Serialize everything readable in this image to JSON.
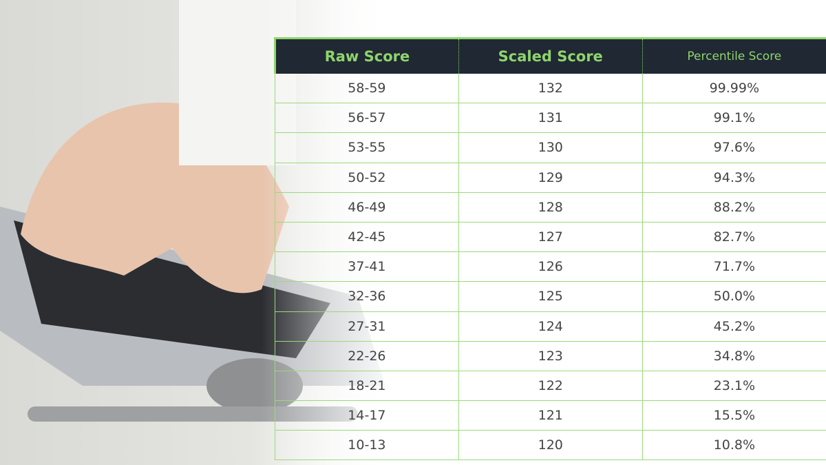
{
  "table": {
    "headers": [
      "Raw Score",
      "Scaled Score",
      "Percentile Score"
    ],
    "rows": [
      [
        "58-59",
        "132",
        "99.99%"
      ],
      [
        "56-57",
        "131",
        "99.1%"
      ],
      [
        "53-55",
        "130",
        "97.6%"
      ],
      [
        "50-52",
        "129",
        "94.3%"
      ],
      [
        "46-49",
        "128",
        "88.2%"
      ],
      [
        "42-45",
        "127",
        "82.7%"
      ],
      [
        "37-41",
        "126",
        "71.7%"
      ],
      [
        "32-36",
        "125",
        "50.0%"
      ],
      [
        "27-31",
        "124",
        "45.2%"
      ],
      [
        "22-26",
        "123",
        "34.8%"
      ],
      [
        "18-21",
        "122",
        "23.1%"
      ],
      [
        "14-17",
        "121",
        "15.5%"
      ],
      [
        "10-13",
        "120",
        "10.8%"
      ]
    ]
  }
}
